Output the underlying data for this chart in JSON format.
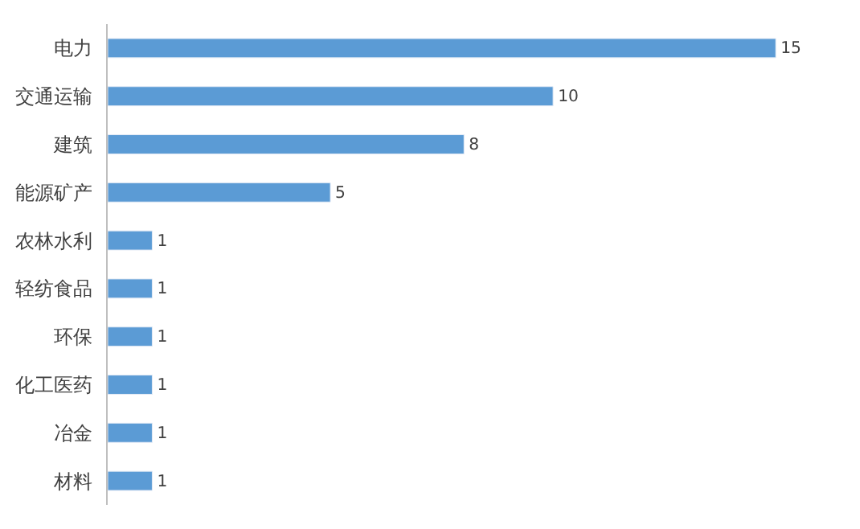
{
  "chart_data": {
    "type": "bar",
    "orientation": "horizontal",
    "categories": [
      "电力",
      "交通运输",
      "建筑",
      "能源矿产",
      "农林水利",
      "轻纺食品",
      "环保",
      "化工医药",
      "冶金",
      "材料"
    ],
    "values": [
      15,
      10,
      8,
      5,
      1,
      1,
      1,
      1,
      1,
      1
    ],
    "color": "#5b9bd5",
    "data_labels": true
  }
}
